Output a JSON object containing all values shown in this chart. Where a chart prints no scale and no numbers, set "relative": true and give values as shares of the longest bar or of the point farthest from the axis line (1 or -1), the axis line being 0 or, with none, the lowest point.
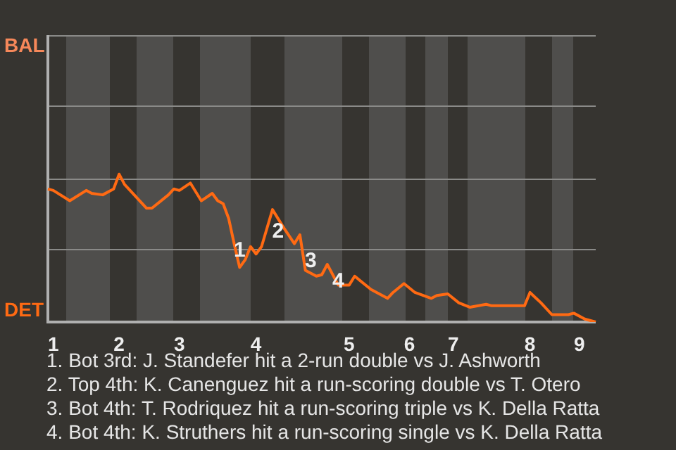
{
  "chart_data": {
    "type": "line",
    "relative": true,
    "categories": [
      null,
      "1",
      null,
      null,
      null,
      null,
      null,
      null,
      null,
      null,
      null,
      null,
      null,
      "2",
      null,
      null,
      null,
      null,
      null,
      null,
      null,
      null,
      null,
      null,
      "3",
      null,
      null,
      null,
      null,
      null,
      null,
      null,
      null,
      null,
      null,
      null,
      null,
      null,
      "4",
      null,
      null,
      null,
      null,
      null,
      null,
      null,
      null,
      null,
      null,
      null,
      null,
      null,
      null,
      null,
      null,
      "5",
      null,
      null,
      null,
      null,
      null,
      null,
      null,
      null,
      null,
      null,
      "6",
      null,
      null,
      null,
      null,
      null,
      null,
      null,
      "7",
      null,
      null,
      null,
      null,
      null,
      null,
      null,
      null,
      null,
      null,
      null,
      null,
      null,
      "8",
      null,
      null,
      null,
      null,
      null,
      null,
      null,
      null,
      "9",
      null,
      null,
      null
    ],
    "series": [
      {
        "color": "#ff6a13",
        "values": [
          0.9,
          0.89,
          null,
          null,
          0.82,
          null,
          null,
          0.89,
          0.87,
          null,
          0.86,
          null,
          0.9,
          1,
          0.93,
          null,
          null,
          0.81,
          0.77,
          0.77,
          null,
          null,
          0.86,
          0.9,
          0.89,
          null,
          0.94,
          null,
          0.82,
          null,
          0.87,
          0.82,
          0.8,
          0.7,
          0.53,
          0.37,
          0.42,
          0.51,
          0.46,
          0.51,
          null,
          0.76,
          null,
          0.64,
          null,
          0.53,
          0.59,
          0.35,
          null,
          0.31,
          0.32,
          0.39,
          null,
          0.25,
          null,
          0.25,
          0.31,
          null,
          null,
          0.22,
          null,
          null,
          0.16,
          0.2,
          null,
          0.26,
          null,
          0.2,
          null,
          null,
          0.16,
          0.18,
          null,
          0.19,
          null,
          0.13,
          null,
          0.1,
          null,
          null,
          0.12,
          0.11,
          null,
          null,
          null,
          null,
          null,
          0.11,
          0.2,
          null,
          0.13,
          null,
          0.05,
          null,
          null,
          0.05,
          0.06,
          null,
          0.02,
          null,
          0
        ]
      }
    ],
    "ref_lines": [
      {
        "axis": "y",
        "value": 0.49,
        "color": "#8a8a88"
      },
      {
        "axis": "y",
        "value": 0.97,
        "color": "#8a8a88"
      },
      {
        "axis": "y",
        "value": 1.46,
        "color": "#8a8a88"
      },
      {
        "axis": "y",
        "value": 1.94,
        "color": "#8a8a88"
      }
    ],
    "legend": false,
    "marker": "none",
    "line_style": "solid",
    "annotations": [
      "BAL",
      "DET",
      {
        "text": "1",
        "y": 0.48
      },
      {
        "text": "2",
        "y": 0.61
      },
      {
        "text": "3",
        "y": 0.41
      },
      {
        "text": "4",
        "y": 0.27
      },
      "1. Bot 3rd: J. Standefer hit a 2-run double vs J. Ashworth",
      "2. Top 4th: K. Canenguez hit a run-scoring double vs T. Otero",
      "3. Bot 4th: T. Rodriquez hit a run-scoring triple vs K. Della Ratta",
      "4. Bot 4th: K. Struthers hit a run-scoring single vs K. Della Ratta"
    ]
  }
}
